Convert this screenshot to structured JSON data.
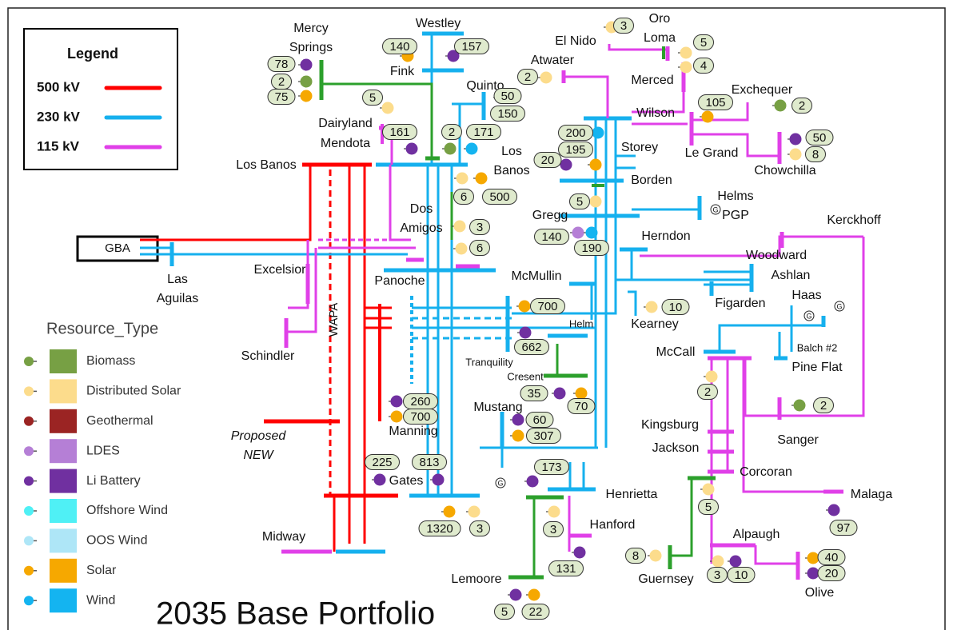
{
  "title": "2035 Base Portfolio",
  "legend": {
    "title": "Legend",
    "items": [
      {
        "label": "500 kV",
        "color": "#ff0000"
      },
      {
        "label": "230 kV",
        "color": "#16b0ee"
      },
      {
        "label": "115 kV",
        "color": "#e040e8"
      }
    ]
  },
  "resource_legend": {
    "title": "Resource_Type",
    "items": [
      {
        "label": "Biomass",
        "color": "#77a044"
      },
      {
        "label": "Distributed Solar",
        "color": "#fcdc8c"
      },
      {
        "label": "Geothermal",
        "color": "#9b2423"
      },
      {
        "label": "LDES",
        "color": "#b57fd6"
      },
      {
        "label": "Li Battery",
        "color": "#7030a0"
      },
      {
        "label": "Offshore Wind",
        "color": "#4ff0f5"
      },
      {
        "label": "OOS Wind",
        "color": "#aee6f7"
      },
      {
        "label": "Solar",
        "color": "#f6a800"
      },
      {
        "label": "Wind",
        "color": "#14b4f0"
      }
    ]
  },
  "buses": [
    {
      "label": "Westley"
    },
    {
      "label": "Fink"
    },
    {
      "label": [
        "Mercy",
        "Springs"
      ]
    },
    {
      "label": "Quinto"
    },
    {
      "label": "Dairyland"
    },
    {
      "label": "Mendota"
    },
    {
      "label": "Los Banos"
    },
    {
      "label": [
        "Los",
        "Banos"
      ]
    },
    {
      "label": [
        "Dos",
        "Amigos"
      ]
    },
    {
      "label": "Panoche"
    },
    {
      "label": "Excelsior"
    },
    {
      "label": [
        "Las",
        "Aguilas"
      ]
    },
    {
      "label": "Schindler"
    },
    {
      "label": "WAPA"
    },
    {
      "label": [
        "Proposed",
        "NEW"
      ]
    },
    {
      "label": "Manning"
    },
    {
      "label": "Gates"
    },
    {
      "label": "Midway"
    },
    {
      "label": "Mustang"
    },
    {
      "label": "Lemoore"
    },
    {
      "label": "Henrietta"
    },
    {
      "label": "Hanford"
    },
    {
      "label": "Tranquility"
    },
    {
      "label": "Cresent"
    },
    {
      "label": "Helm"
    },
    {
      "label": "McMullin"
    },
    {
      "label": "Kearney"
    },
    {
      "label": "Gregg"
    },
    {
      "label": "Herndon"
    },
    {
      "label": [
        "Helms",
        "PGP"
      ]
    },
    {
      "label": "Storey"
    },
    {
      "label": "Borden"
    },
    {
      "label": "El Nido"
    },
    {
      "label": [
        "Oro",
        "Loma"
      ]
    },
    {
      "label": "Atwater"
    },
    {
      "label": "Merced"
    },
    {
      "label": "Wilson"
    },
    {
      "label": "Exchequer"
    },
    {
      "label": "Le Grand"
    },
    {
      "label": "Chowchilla"
    },
    {
      "label": "Kerckhoff"
    },
    {
      "label": "Woodward"
    },
    {
      "label": "Ashlan"
    },
    {
      "label": "Figarden"
    },
    {
      "label": "Haas"
    },
    {
      "label": "McCall"
    },
    {
      "label": [
        "Balch #2",
        "Pine Flat"
      ]
    },
    {
      "label": "Kingsburg"
    },
    {
      "label": "Jackson"
    },
    {
      "label": "Corcoran"
    },
    {
      "label": "Sanger"
    },
    {
      "label": "Malaga"
    },
    {
      "label": "Alpaugh"
    },
    {
      "label": "Guernsey"
    },
    {
      "label": "Olive"
    },
    {
      "label": "GBA"
    }
  ],
  "generator_symbols": [
    "G",
    "G",
    "G",
    "G"
  ],
  "resources": [
    {
      "value": "78",
      "color": "#7030a0"
    },
    {
      "value": "2",
      "color": "#77a044"
    },
    {
      "value": "75",
      "color": "#f6a800"
    },
    {
      "value": "140",
      "color": "#f6a800"
    },
    {
      "value": "157",
      "color": "#7030a0"
    },
    {
      "value": "3",
      "color": "#fcdc8c"
    },
    {
      "value": "5",
      "color": "#fcdc8c"
    },
    {
      "value": "4",
      "color": "#fcdc8c"
    },
    {
      "value": "2",
      "color": "#fcdc8c"
    },
    {
      "value": "50",
      "color": "#7030a0"
    },
    {
      "value": "150",
      "color": "#f6a800"
    },
    {
      "value": "5",
      "color": "#fcdc8c"
    },
    {
      "value": "161",
      "color": "#7030a0"
    },
    {
      "value": "2",
      "color": "#77a044"
    },
    {
      "value": "171",
      "color": "#14b4f0"
    },
    {
      "value": "105",
      "color": "#f6a800"
    },
    {
      "value": "2",
      "color": "#77a044"
    },
    {
      "value": "50",
      "color": "#7030a0"
    },
    {
      "value": "8",
      "color": "#fcdc8c"
    },
    {
      "value": "200",
      "color": "#14b4f0"
    },
    {
      "value": "195",
      "color": "#f6a800"
    },
    {
      "value": "20",
      "color": "#7030a0"
    },
    {
      "value": "6",
      "color": "#fcdc8c"
    },
    {
      "value": "500",
      "color": "#f6a800"
    },
    {
      "value": "3",
      "color": "#fcdc8c"
    },
    {
      "value": "6",
      "color": "#fcdc8c"
    },
    {
      "value": "5",
      "color": "#fcdc8c"
    },
    {
      "value": "140",
      "color": "#b57fd6"
    },
    {
      "value": "190",
      "color": "#14b4f0"
    },
    {
      "value": "700",
      "color": "#f6a800"
    },
    {
      "value": "662",
      "color": "#7030a0"
    },
    {
      "value": "10",
      "color": "#fcdc8c"
    },
    {
      "value": "35",
      "color": "#7030a0"
    },
    {
      "value": "70",
      "color": "#f6a800"
    },
    {
      "value": "2",
      "color": "#fcdc8c"
    },
    {
      "value": "2",
      "color": "#77a044"
    },
    {
      "value": "260",
      "color": "#7030a0"
    },
    {
      "value": "700",
      "color": "#f6a800"
    },
    {
      "value": "60",
      "color": "#7030a0"
    },
    {
      "value": "307",
      "color": "#f6a800"
    },
    {
      "value": "225",
      "color": "#7030a0"
    },
    {
      "value": "813",
      "color": "#7030a0"
    },
    {
      "value": "173",
      "color": "#7030a0"
    },
    {
      "value": "1320",
      "color": "#f6a800"
    },
    {
      "value": "3",
      "color": "#fcdc8c"
    },
    {
      "value": "3",
      "color": "#fcdc8c"
    },
    {
      "value": "131",
      "color": "#7030a0"
    },
    {
      "value": "5",
      "color": "#fcdc8c"
    },
    {
      "value": "97",
      "color": "#7030a0"
    },
    {
      "value": "8",
      "color": "#fcdc8c"
    },
    {
      "value": "3",
      "color": "#fcdc8c"
    },
    {
      "value": "10",
      "color": "#7030a0"
    },
    {
      "value": "40",
      "color": "#f6a800"
    },
    {
      "value": "20",
      "color": "#7030a0"
    },
    {
      "value": "5",
      "color": "#7030a0"
    },
    {
      "value": "22",
      "color": "#f6a800"
    }
  ]
}
